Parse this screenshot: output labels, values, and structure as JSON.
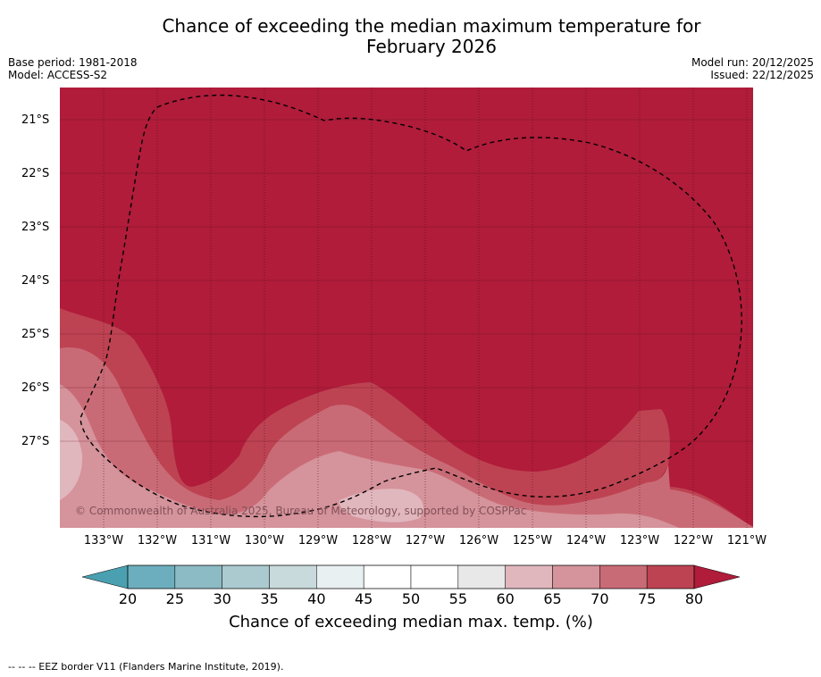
{
  "title_line1": "Chance of exceeding the median maximum temperature for",
  "title_line2": "February 2026",
  "base_period": "Base period: 1981-2018",
  "model": "Model: ACCESS-S2",
  "model_run": "Model run: 20/12/2025",
  "issued": "Issued: 22/12/2025",
  "copyright": "© Commonwealth of Australia 2025, Bureau of Meteorology, supported by COSPPac",
  "lat_labels": [
    "21°S",
    "22°S",
    "23°S",
    "24°S",
    "25°S",
    "26°S",
    "27°S"
  ],
  "lon_labels": [
    "133°W",
    "132°W",
    "131°W",
    "130°W",
    "129°W",
    "128°W",
    "127°W",
    "126°W",
    "125°W",
    "124°W",
    "123°W",
    "122°W",
    "121°W"
  ],
  "colorbar": {
    "labels": [
      "20",
      "25",
      "30",
      "35",
      "40",
      "45",
      "50",
      "55",
      "60",
      "65",
      "70",
      "75",
      "80"
    ],
    "colors": [
      "#6caebd",
      "#8cbac5",
      "#abcacf",
      "#c9dadd",
      "#e9f0f2",
      "#ffffff",
      "#ffffff",
      "#e8e8e8",
      "#e1b7be",
      "#d5939b",
      "#c96b76",
      "#bd4352"
    ],
    "below_color": "#4aa0b0",
    "above_color": "#b01c3a",
    "title": "Chance of exceeding median max. temp. (%)"
  },
  "footer": "--  --  -- EEZ border V11 (Flanders Marine Institute, 2019)."
}
